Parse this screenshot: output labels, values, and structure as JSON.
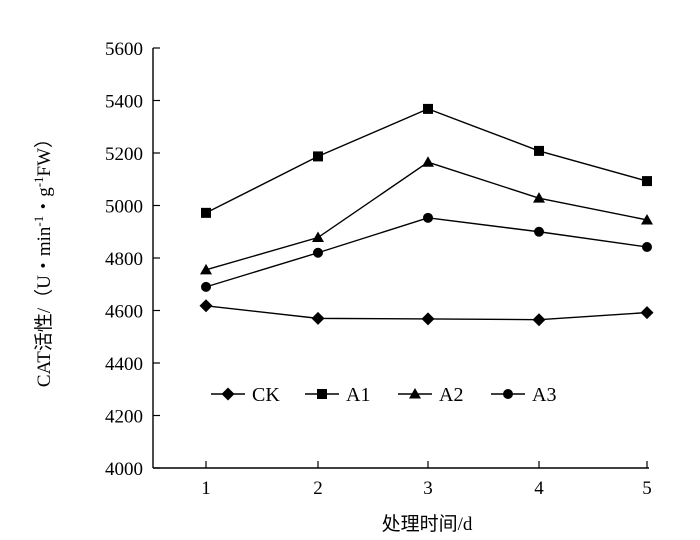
{
  "chart_data": {
    "type": "line",
    "x": [
      1,
      2,
      3,
      4,
      5
    ],
    "xlabel": "处理时间/d",
    "ylabel_main": "CAT活性/（U・min",
    "ylabel_sup1": "-1",
    "ylabel_mid": "・g",
    "ylabel_sup2": "-1",
    "ylabel_end": "FW）",
    "ylim": [
      4000,
      5600
    ],
    "yticks": [
      4000,
      4200,
      4400,
      4600,
      4800,
      5000,
      5200,
      5400,
      5600
    ],
    "xticks": [
      1,
      2,
      3,
      4,
      5
    ],
    "legend_position": "lower-center",
    "series": [
      {
        "name": "CK",
        "marker": "diamond",
        "values": [
          4618,
          4570,
          4568,
          4565,
          4592
        ]
      },
      {
        "name": "A1",
        "marker": "square",
        "values": [
          4972,
          5187,
          5368,
          5208,
          5093
        ]
      },
      {
        "name": "A2",
        "marker": "triangle",
        "values": [
          4755,
          4878,
          5165,
          5028,
          4945
        ]
      },
      {
        "name": "A3",
        "marker": "circle",
        "values": [
          4690,
          4820,
          4953,
          4900,
          4842
        ]
      }
    ]
  }
}
